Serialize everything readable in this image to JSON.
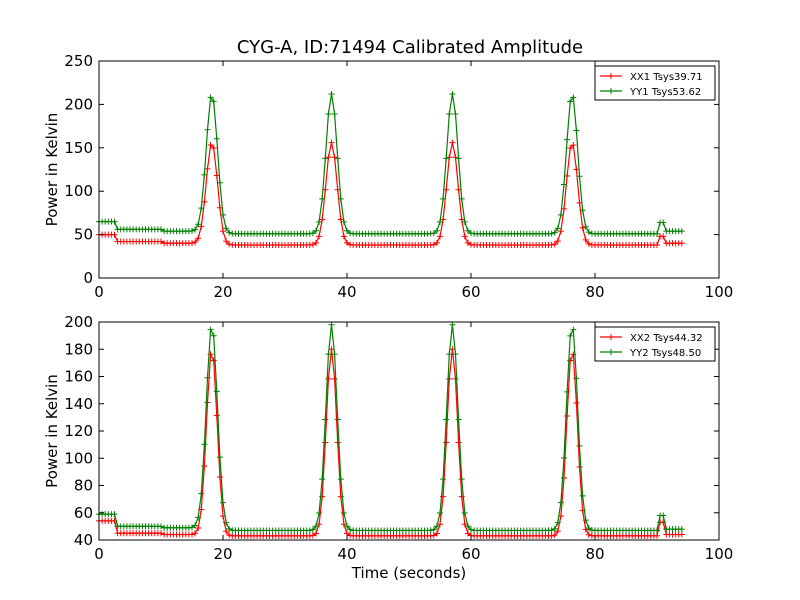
{
  "figure": {
    "title": "CYG-A, ID:71494 Calibrated Amplitude"
  },
  "chart_data": [
    {
      "type": "line",
      "xlabel": "",
      "ylabel": "Power in Kelvin",
      "xlim": [
        0,
        100
      ],
      "ylim": [
        0,
        250
      ],
      "xticks": [
        0,
        20,
        40,
        60,
        80,
        100
      ],
      "yticks": [
        0,
        50,
        100,
        150,
        200,
        250
      ],
      "legend_position": "top-right",
      "marker": "plus",
      "series": [
        {
          "name": "XX1 Tsys39.71",
          "color": "#ff0000",
          "baseline_segments": [
            [
              0,
              2.5,
              50
            ],
            [
              3,
              10,
              42
            ],
            [
              10,
              18,
              40
            ],
            [
              20,
              90,
              38
            ],
            [
              87.5,
              91,
              48
            ],
            [
              91,
              94,
              40
            ]
          ],
          "peaks": [
            [
              18.2,
              156
            ],
            [
              37.5,
              156
            ],
            [
              57.0,
              156
            ],
            [
              76.3,
              156
            ]
          ],
          "peak_width": 0.9
        },
        {
          "name": "YY1 Tsys53.62",
          "color": "#008000",
          "baseline_segments": [
            [
              0,
              2.5,
              65
            ],
            [
              3,
              10,
              56
            ],
            [
              10,
              18,
              54
            ],
            [
              20,
              90,
              51
            ],
            [
              87.5,
              91,
              64
            ],
            [
              91,
              94,
              54
            ]
          ],
          "peaks": [
            [
              18.2,
              212
            ],
            [
              37.5,
              212
            ],
            [
              57.0,
              212
            ],
            [
              76.3,
              212
            ]
          ],
          "peak_width": 0.9
        }
      ]
    },
    {
      "type": "line",
      "xlabel": "Time (seconds)",
      "ylabel": "Power in Kelvin",
      "xlim": [
        0,
        100
      ],
      "ylim": [
        40,
        200
      ],
      "xticks": [
        0,
        20,
        40,
        60,
        80,
        100
      ],
      "yticks": [
        40,
        60,
        80,
        100,
        120,
        140,
        160,
        180,
        200
      ],
      "legend_position": "top-right",
      "marker": "plus",
      "series": [
        {
          "name": "XX2 Tsys44.32",
          "color": "#ff0000",
          "baseline_segments": [
            [
              0,
              2.5,
              54
            ],
            [
              3,
              10,
              45
            ],
            [
              10,
              18,
              44
            ],
            [
              20,
              90,
              43
            ],
            [
              87.5,
              91,
              53
            ],
            [
              91,
              94,
              44
            ]
          ],
          "peaks": [
            [
              18.2,
              180
            ],
            [
              37.5,
              180
            ],
            [
              57.0,
              180
            ],
            [
              76.3,
              180
            ]
          ],
          "peak_width": 0.85
        },
        {
          "name": "YY2 Tsys48.50",
          "color": "#008000",
          "baseline_segments": [
            [
              0,
              2.5,
              59
            ],
            [
              3,
              10,
              50
            ],
            [
              10,
              18,
              49
            ],
            [
              20,
              90,
              47
            ],
            [
              87.5,
              91,
              58
            ],
            [
              91,
              94,
              48
            ]
          ],
          "peaks": [
            [
              18.2,
              198
            ],
            [
              37.5,
              198
            ],
            [
              57.0,
              198
            ],
            [
              76.3,
              198
            ]
          ],
          "peak_width": 0.9
        }
      ]
    }
  ]
}
